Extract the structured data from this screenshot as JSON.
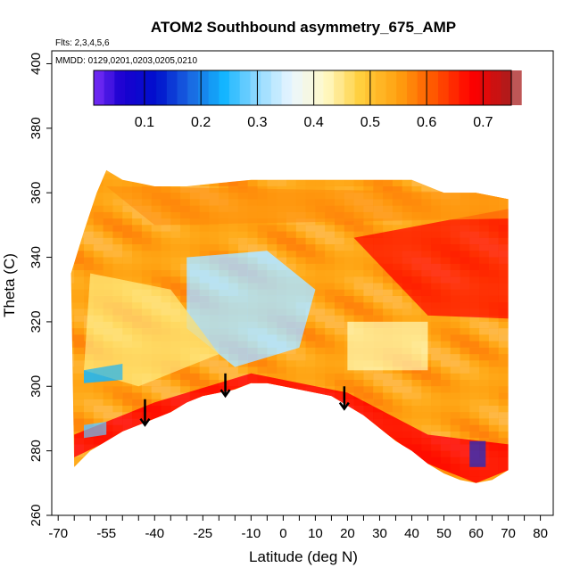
{
  "chart_data": {
    "type": "heatmap",
    "title": "ATOM2 Southbound asymmetry_675_AMP",
    "subtitle_lines": [
      "Flts: 2,3,4,5,6",
      "MMDD: 0129,0201,0203,0205,0210"
    ],
    "xlabel": "Latitude (deg N)",
    "ylabel": "Theta (C)",
    "xlim": [
      -72,
      84
    ],
    "ylim": [
      260,
      404
    ],
    "x_ticks": [
      -70,
      -65,
      -60,
      -55,
      -50,
      -45,
      -40,
      -35,
      -30,
      -25,
      -20,
      -15,
      -10,
      -5,
      0,
      5,
      10,
      15,
      20,
      25,
      30,
      35,
      40,
      45,
      50,
      55,
      60,
      65,
      70,
      75,
      80
    ],
    "x_tick_labels": [
      "-70",
      "-55",
      "-40",
      "-25",
      "-10",
      "0",
      "10",
      "20",
      "30",
      "40",
      "50",
      "60",
      "70",
      "80"
    ],
    "x_tick_label_values": [
      -70,
      -55,
      -40,
      -25,
      -10,
      0,
      10,
      20,
      30,
      40,
      50,
      60,
      70,
      80
    ],
    "y_ticks": [
      260,
      280,
      300,
      320,
      340,
      360,
      380,
      400
    ],
    "y_tick_labels": [
      "260",
      "280",
      "300",
      "320",
      "340",
      "360",
      "380",
      "400"
    ],
    "colorbar": {
      "range": [
        0.01,
        0.75
      ],
      "tick_values": [
        0.1,
        0.2,
        0.3,
        0.4,
        0.5,
        0.6,
        0.7
      ],
      "tick_labels": [
        "0.1",
        "0.2",
        "0.3",
        "0.4",
        "0.5",
        "0.6",
        "0.7"
      ],
      "color_stops": [
        {
          "value": 0.01,
          "color": "#7b2ff7"
        },
        {
          "value": 0.06,
          "color": "#1a00d0"
        },
        {
          "value": 0.12,
          "color": "#0010cc"
        },
        {
          "value": 0.18,
          "color": "#1a66e0"
        },
        {
          "value": 0.24,
          "color": "#12b4ff"
        },
        {
          "value": 0.3,
          "color": "#8fd8ff"
        },
        {
          "value": 0.36,
          "color": "#eaf6ff"
        },
        {
          "value": 0.42,
          "color": "#fff9c8"
        },
        {
          "value": 0.48,
          "color": "#ffd040"
        },
        {
          "value": 0.55,
          "color": "#ffa010"
        },
        {
          "value": 0.61,
          "color": "#ff5a00"
        },
        {
          "value": 0.68,
          "color": "#ff0000"
        },
        {
          "value": 0.75,
          "color": "#a81e1e"
        }
      ]
    },
    "domain_lower_boundary": [
      {
        "lat": -65,
        "theta": 275
      },
      {
        "lat": -60,
        "theta": 280
      },
      {
        "lat": -55,
        "theta": 283
      },
      {
        "lat": -50,
        "theta": 286
      },
      {
        "lat": -45,
        "theta": 288
      },
      {
        "lat": -40,
        "theta": 290
      },
      {
        "lat": -35,
        "theta": 292
      },
      {
        "lat": -30,
        "theta": 295
      },
      {
        "lat": -25,
        "theta": 297
      },
      {
        "lat": -20,
        "theta": 298
      },
      {
        "lat": -15,
        "theta": 299
      },
      {
        "lat": -10,
        "theta": 301
      },
      {
        "lat": -5,
        "theta": 301
      },
      {
        "lat": 0,
        "theta": 300
      },
      {
        "lat": 5,
        "theta": 299
      },
      {
        "lat": 10,
        "theta": 298
      },
      {
        "lat": 15,
        "theta": 297
      },
      {
        "lat": 20,
        "theta": 294
      },
      {
        "lat": 25,
        "theta": 291
      },
      {
        "lat": 30,
        "theta": 287
      },
      {
        "lat": 35,
        "theta": 283
      },
      {
        "lat": 40,
        "theta": 280
      },
      {
        "lat": 45,
        "theta": 276
      },
      {
        "lat": 50,
        "theta": 273
      },
      {
        "lat": 55,
        "theta": 271
      },
      {
        "lat": 60,
        "theta": 270
      },
      {
        "lat": 65,
        "theta": 271
      },
      {
        "lat": 70,
        "theta": 274
      }
    ],
    "domain_upper_boundary": [
      {
        "lat": -66,
        "theta": 335
      },
      {
        "lat": -62,
        "theta": 348
      },
      {
        "lat": -58,
        "theta": 360
      },
      {
        "lat": -55,
        "theta": 367
      },
      {
        "lat": -50,
        "theta": 364
      },
      {
        "lat": -45,
        "theta": 363
      },
      {
        "lat": -40,
        "theta": 362
      },
      {
        "lat": -30,
        "theta": 362
      },
      {
        "lat": -20,
        "theta": 363
      },
      {
        "lat": -10,
        "theta": 364
      },
      {
        "lat": 0,
        "theta": 364
      },
      {
        "lat": 10,
        "theta": 364
      },
      {
        "lat": 20,
        "theta": 364
      },
      {
        "lat": 30,
        "theta": 364
      },
      {
        "lat": 40,
        "theta": 364
      },
      {
        "lat": 50,
        "theta": 360
      },
      {
        "lat": 60,
        "theta": 360
      },
      {
        "lat": 70,
        "theta": 358
      }
    ],
    "value_regions": [
      {
        "name": "background-orange",
        "value": 0.55,
        "points": []
      },
      {
        "name": "upper-right-red-wedge",
        "value": 0.66,
        "points": [
          [
            22,
            346
          ],
          [
            70,
            355
          ],
          [
            70,
            321
          ],
          [
            45,
            322
          ]
        ]
      },
      {
        "name": "lower-rim-red",
        "value": 0.68,
        "points": [
          [
            -65,
            278
          ],
          [
            -40,
            290
          ],
          [
            -10,
            301
          ],
          [
            20,
            294
          ],
          [
            45,
            276
          ],
          [
            60,
            270
          ],
          [
            70,
            274
          ],
          [
            70,
            282
          ],
          [
            45,
            285
          ],
          [
            20,
            298
          ],
          [
            -10,
            304
          ],
          [
            -40,
            295
          ],
          [
            -65,
            285
          ]
        ]
      },
      {
        "name": "upper-band-orange",
        "value": 0.56,
        "points": [
          [
            -55,
            362
          ],
          [
            70,
            360
          ],
          [
            70,
            352
          ],
          [
            -40,
            350
          ]
        ]
      },
      {
        "name": "central-light-blue",
        "value": 0.32,
        "points": [
          [
            -30,
            340
          ],
          [
            -5,
            342
          ],
          [
            10,
            330
          ],
          [
            5,
            312
          ],
          [
            -15,
            306
          ],
          [
            -30,
            318
          ]
        ]
      },
      {
        "name": "mid-yellow",
        "value": 0.46,
        "points": [
          [
            -60,
            335
          ],
          [
            -35,
            330
          ],
          [
            -20,
            310
          ],
          [
            -45,
            300
          ],
          [
            -62,
            305
          ]
        ]
      },
      {
        "name": "south-west-blue-patch",
        "value": 0.24,
        "points": [
          [
            -62,
            305
          ],
          [
            -50,
            307
          ],
          [
            -50,
            302
          ],
          [
            -62,
            301
          ]
        ]
      },
      {
        "name": "south-pole-blue-patch",
        "value": 0.28,
        "points": [
          [
            -62,
            288
          ],
          [
            -55,
            289
          ],
          [
            -55,
            285
          ],
          [
            -62,
            284
          ]
        ]
      },
      {
        "name": "north-blue-patch",
        "value": 0.14,
        "points": [
          [
            58,
            283
          ],
          [
            63,
            283
          ],
          [
            63,
            275
          ],
          [
            58,
            275
          ]
        ]
      },
      {
        "name": "north-light-patch",
        "value": 0.44,
        "points": [
          [
            20,
            320
          ],
          [
            45,
            320
          ],
          [
            45,
            305
          ],
          [
            20,
            305
          ]
        ]
      }
    ],
    "arrows": [
      {
        "lat": -43,
        "theta_top": 296,
        "theta_bottom": 288
      },
      {
        "lat": -18,
        "theta_top": 304,
        "theta_bottom": 297
      },
      {
        "lat": 19,
        "theta_top": 300,
        "theta_bottom": 293
      }
    ]
  }
}
